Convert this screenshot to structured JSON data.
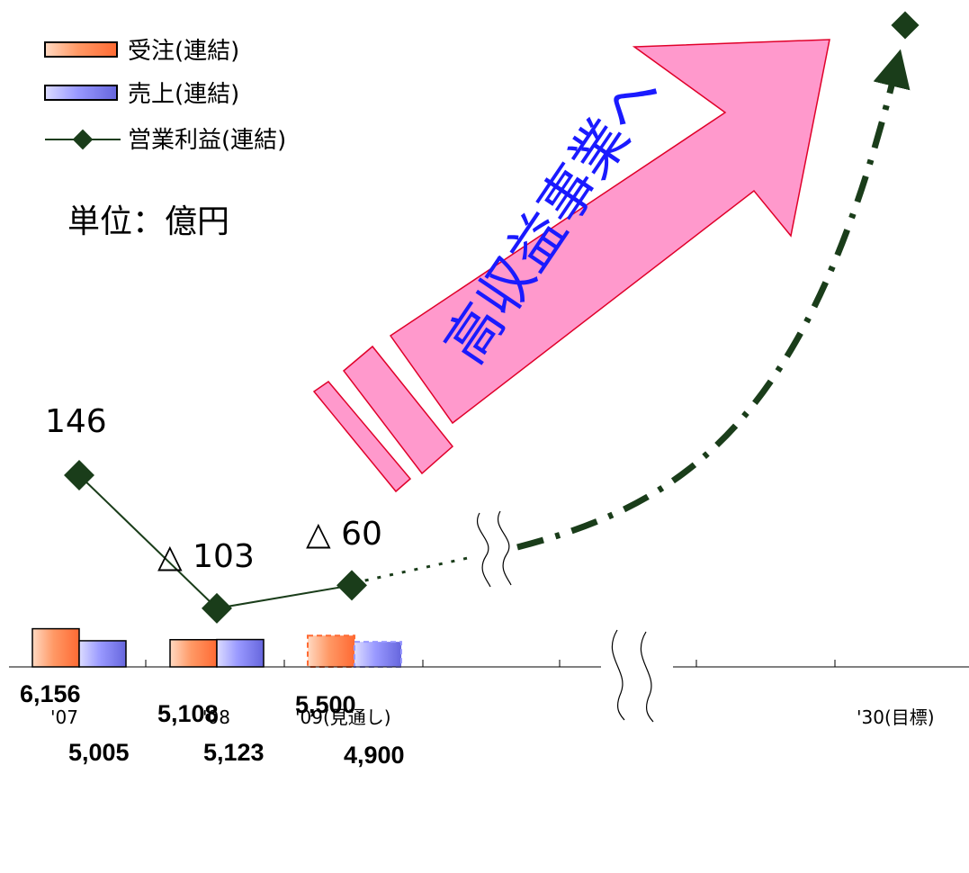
{
  "legend": {
    "orders": "受注(連結)",
    "sales": "売上(連結)",
    "operating_profit": "営業利益(連結)"
  },
  "unit_label": "単位：億円",
  "arrow_text": "高収益事業へ",
  "colors": {
    "orders": "#ff9966",
    "sales": "#9999ff",
    "profit_line": "#1a3d1a",
    "arrow_fill": "#ff99cc",
    "arrow_stroke": "#e0002a",
    "arrow_text": "#1a1aff"
  },
  "chart_data": {
    "type": "bar",
    "categories": [
      "'07",
      "'08",
      "'09(見通し)",
      "'30(目標)"
    ],
    "series": [
      {
        "name": "受注(連結)",
        "values": [
          6156,
          5108,
          5500,
          null
        ],
        "labels": [
          "6,156",
          "5,108",
          "5,500",
          ""
        ]
      },
      {
        "name": "売上(連結)",
        "values": [
          5005,
          5123,
          4900,
          null
        ],
        "labels": [
          "5,005",
          "5,123",
          "4,900",
          ""
        ]
      }
    ],
    "line_series": {
      "name": "営業利益(連結)",
      "values": [
        146,
        -103,
        -60,
        null
      ],
      "labels": [
        "146",
        "△ 103",
        "△ 60",
        ""
      ],
      "target_trend": "up"
    },
    "axis_break": true,
    "legend_position": "top-left"
  }
}
